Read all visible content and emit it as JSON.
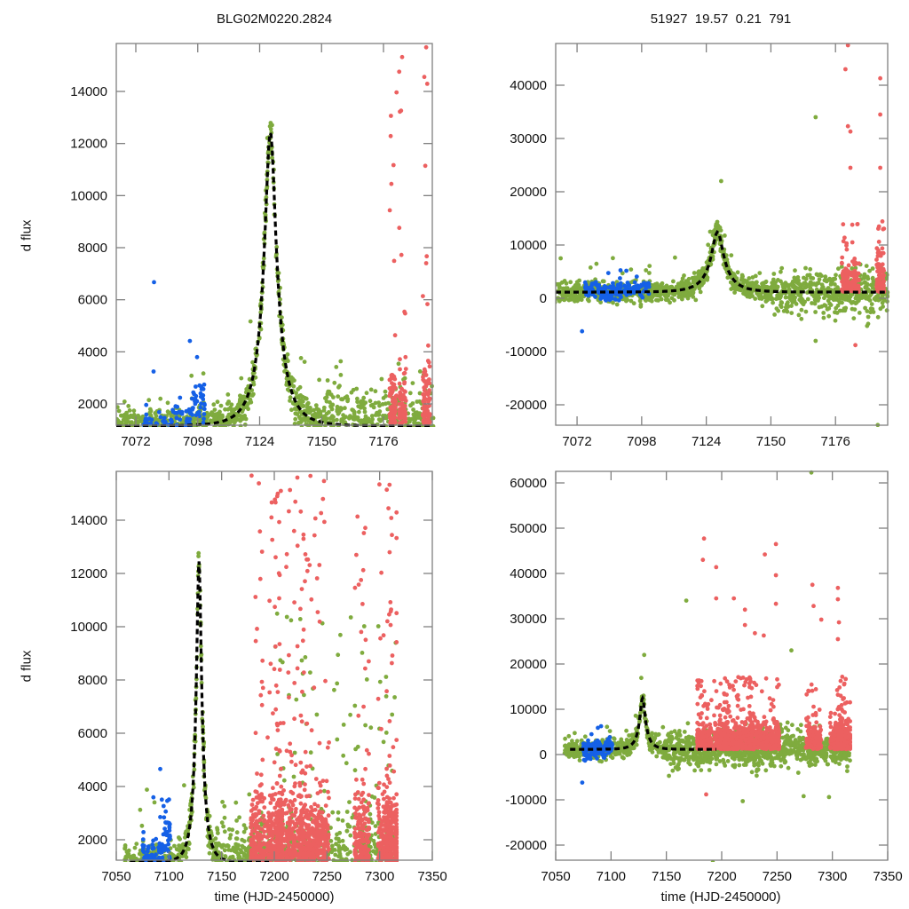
{
  "figure": {
    "title_left": "BLG02M0220.2824",
    "title_right": "51927  19.57  0.21  791",
    "ylabel": "d flux",
    "xlabel": "time (HJD-2450000)"
  },
  "colors": {
    "blue": "#1560e6",
    "green": "#7fab3e",
    "red": "#ec6060",
    "model": "#000000",
    "axis": "#808080"
  },
  "chart_data": [
    {
      "id": "top-left",
      "type": "scatter",
      "title": "BLG02M0220.2824",
      "xlabel": "",
      "ylabel": "d flux",
      "xlim": [
        7063.8,
        7196.5
      ],
      "ylim": [
        1182,
        15841
      ],
      "xticks": [
        7072,
        7098,
        7124,
        7150,
        7176
      ],
      "yticks": [
        2000,
        4000,
        6000,
        8000,
        10000,
        12000,
        14000
      ],
      "grid": false,
      "legend": "none",
      "series": [
        {
          "name": "blue-survey",
          "color": "blue",
          "x_range": [
            7075,
            7101
          ]
        },
        {
          "name": "green-survey",
          "color": "green",
          "x_range": [
            7060,
            7197
          ]
        },
        {
          "name": "red-survey",
          "color": "red",
          "x_range": [
            7178,
            7197
          ]
        }
      ],
      "model": {
        "type": "paczynski",
        "t0": 7128.5,
        "peak": 12450,
        "baseline": 1150,
        "tE_days": 9.5,
        "style": "dashed"
      },
      "annotations": []
    },
    {
      "id": "top-right",
      "type": "scatter",
      "title": "51927  19.57  0.21  791",
      "xlabel": "",
      "ylabel": "",
      "xlim": [
        7063.4,
        7197
      ],
      "ylim": [
        -23833,
        47833
      ],
      "xticks": [
        7072,
        7098,
        7124,
        7150,
        7176
      ],
      "yticks": [
        -20000,
        -10000,
        0,
        10000,
        20000,
        30000,
        40000
      ],
      "grid": false,
      "legend": "none",
      "series": [
        {
          "name": "blue-survey",
          "color": "blue",
          "x_range": [
            7075,
            7101
          ]
        },
        {
          "name": "green-survey",
          "color": "green",
          "x_range": [
            7060,
            7197
          ]
        },
        {
          "name": "red-survey",
          "color": "red",
          "x_range": [
            7178,
            7197
          ]
        }
      ],
      "model": {
        "type": "paczynski",
        "t0": 7128.5,
        "peak": 12450,
        "baseline": 1150,
        "tE_days": 9.5,
        "style": "dashed"
      },
      "outliers": [
        {
          "x": 7181,
          "y": 47500,
          "series": "red"
        },
        {
          "x": 7180,
          "y": 43000,
          "series": "red"
        },
        {
          "x": 7194,
          "y": 41300,
          "series": "red"
        },
        {
          "x": 7194,
          "y": 34500,
          "series": "red"
        },
        {
          "x": 7168,
          "y": 34000,
          "series": "green"
        },
        {
          "x": 7181,
          "y": 32300,
          "series": "red"
        },
        {
          "x": 7182,
          "y": 31300,
          "series": "red"
        },
        {
          "x": 7182,
          "y": 24500,
          "series": "red"
        },
        {
          "x": 7194,
          "y": 24500,
          "series": "red"
        },
        {
          "x": 7130,
          "y": 22000,
          "series": "green"
        },
        {
          "x": 7074,
          "y": -6200,
          "series": "blue"
        },
        {
          "x": 7168,
          "y": -8000,
          "series": "green"
        },
        {
          "x": 7184,
          "y": -8800,
          "series": "red"
        },
        {
          "x": 7193,
          "y": -23800,
          "series": "green"
        }
      ]
    },
    {
      "id": "bottom-left",
      "type": "scatter",
      "title": "",
      "xlabel": "time (HJD-2450000)",
      "ylabel": "d flux",
      "xlim": [
        7050,
        7350
      ],
      "ylim": [
        1233,
        15833
      ],
      "xticks": [
        7050,
        7100,
        7150,
        7200,
        7250,
        7300,
        7350
      ],
      "yticks": [
        2000,
        4000,
        6000,
        8000,
        10000,
        12000,
        14000
      ],
      "grid": false,
      "legend": "none",
      "series": [
        {
          "name": "blue-survey",
          "color": "blue",
          "x_range": [
            7075,
            7101
          ]
        },
        {
          "name": "green-survey",
          "color": "green",
          "x_range": [
            7058,
            7316
          ]
        },
        {
          "name": "red-survey",
          "color": "red",
          "x_range": [
            7178,
            7316
          ]
        }
      ],
      "model": {
        "type": "paczynski",
        "t0": 7128.5,
        "peak": 12450,
        "baseline": 1150,
        "tE_days": 9.5,
        "t_end": 7195,
        "style": "dashed"
      }
    },
    {
      "id": "bottom-right",
      "type": "scatter",
      "title": "",
      "xlabel": "time (HJD-2450000)",
      "ylabel": "",
      "xlim": [
        7050,
        7350
      ],
      "ylim": [
        -23333,
        62549
      ],
      "xticks": [
        7050,
        7100,
        7150,
        7200,
        7250,
        7300,
        7350
      ],
      "yticks": [
        -20000,
        -10000,
        0,
        10000,
        20000,
        30000,
        40000,
        50000,
        60000
      ],
      "grid": false,
      "legend": "none",
      "series": [
        {
          "name": "blue-survey",
          "color": "blue",
          "x_range": [
            7075,
            7101
          ]
        },
        {
          "name": "green-survey",
          "color": "green",
          "x_range": [
            7058,
            7316
          ]
        },
        {
          "name": "red-survey",
          "color": "red",
          "x_range": [
            7178,
            7316
          ]
        }
      ],
      "model": {
        "type": "paczynski",
        "t0": 7128.5,
        "peak": 12450,
        "baseline": 1150,
        "tE_days": 9.5,
        "t_end": 7195,
        "style": "dashed"
      },
      "outliers": [
        {
          "x": 7281,
          "y": 62300,
          "series": "green"
        },
        {
          "x": 7184,
          "y": 47700,
          "series": "red"
        },
        {
          "x": 7249,
          "y": 46500,
          "series": "red"
        },
        {
          "x": 7239,
          "y": 44200,
          "series": "red"
        },
        {
          "x": 7183,
          "y": 43000,
          "series": "red"
        },
        {
          "x": 7195,
          "y": 41400,
          "series": "red"
        },
        {
          "x": 7249,
          "y": 39600,
          "series": "red"
        },
        {
          "x": 7282,
          "y": 37500,
          "series": "red"
        },
        {
          "x": 7305,
          "y": 36800,
          "series": "red"
        },
        {
          "x": 7195,
          "y": 34500,
          "series": "red"
        },
        {
          "x": 7211,
          "y": 34500,
          "series": "red"
        },
        {
          "x": 7168,
          "y": 34000,
          "series": "green"
        },
        {
          "x": 7305,
          "y": 34300,
          "series": "red"
        },
        {
          "x": 7249,
          "y": 33300,
          "series": "red"
        },
        {
          "x": 7283,
          "y": 32800,
          "series": "red"
        },
        {
          "x": 7221,
          "y": 32000,
          "series": "red"
        },
        {
          "x": 7290,
          "y": 29800,
          "series": "red"
        },
        {
          "x": 7306,
          "y": 29200,
          "series": "red"
        },
        {
          "x": 7221,
          "y": 28600,
          "series": "red"
        },
        {
          "x": 7230,
          "y": 26800,
          "series": "red"
        },
        {
          "x": 7238,
          "y": 26300,
          "series": "red"
        },
        {
          "x": 7305,
          "y": 25500,
          "series": "red"
        },
        {
          "x": 7263,
          "y": 23000,
          "series": "green"
        },
        {
          "x": 7130,
          "y": 22000,
          "series": "green"
        },
        {
          "x": 7074,
          "y": -6200,
          "series": "blue"
        },
        {
          "x": 7219,
          "y": -10300,
          "series": "green"
        },
        {
          "x": 7274,
          "y": -9200,
          "series": "green"
        },
        {
          "x": 7297,
          "y": -9400,
          "series": "green"
        },
        {
          "x": 7186,
          "y": -8800,
          "series": "red"
        },
        {
          "x": 7192,
          "y": -23800,
          "series": "green"
        }
      ]
    }
  ]
}
